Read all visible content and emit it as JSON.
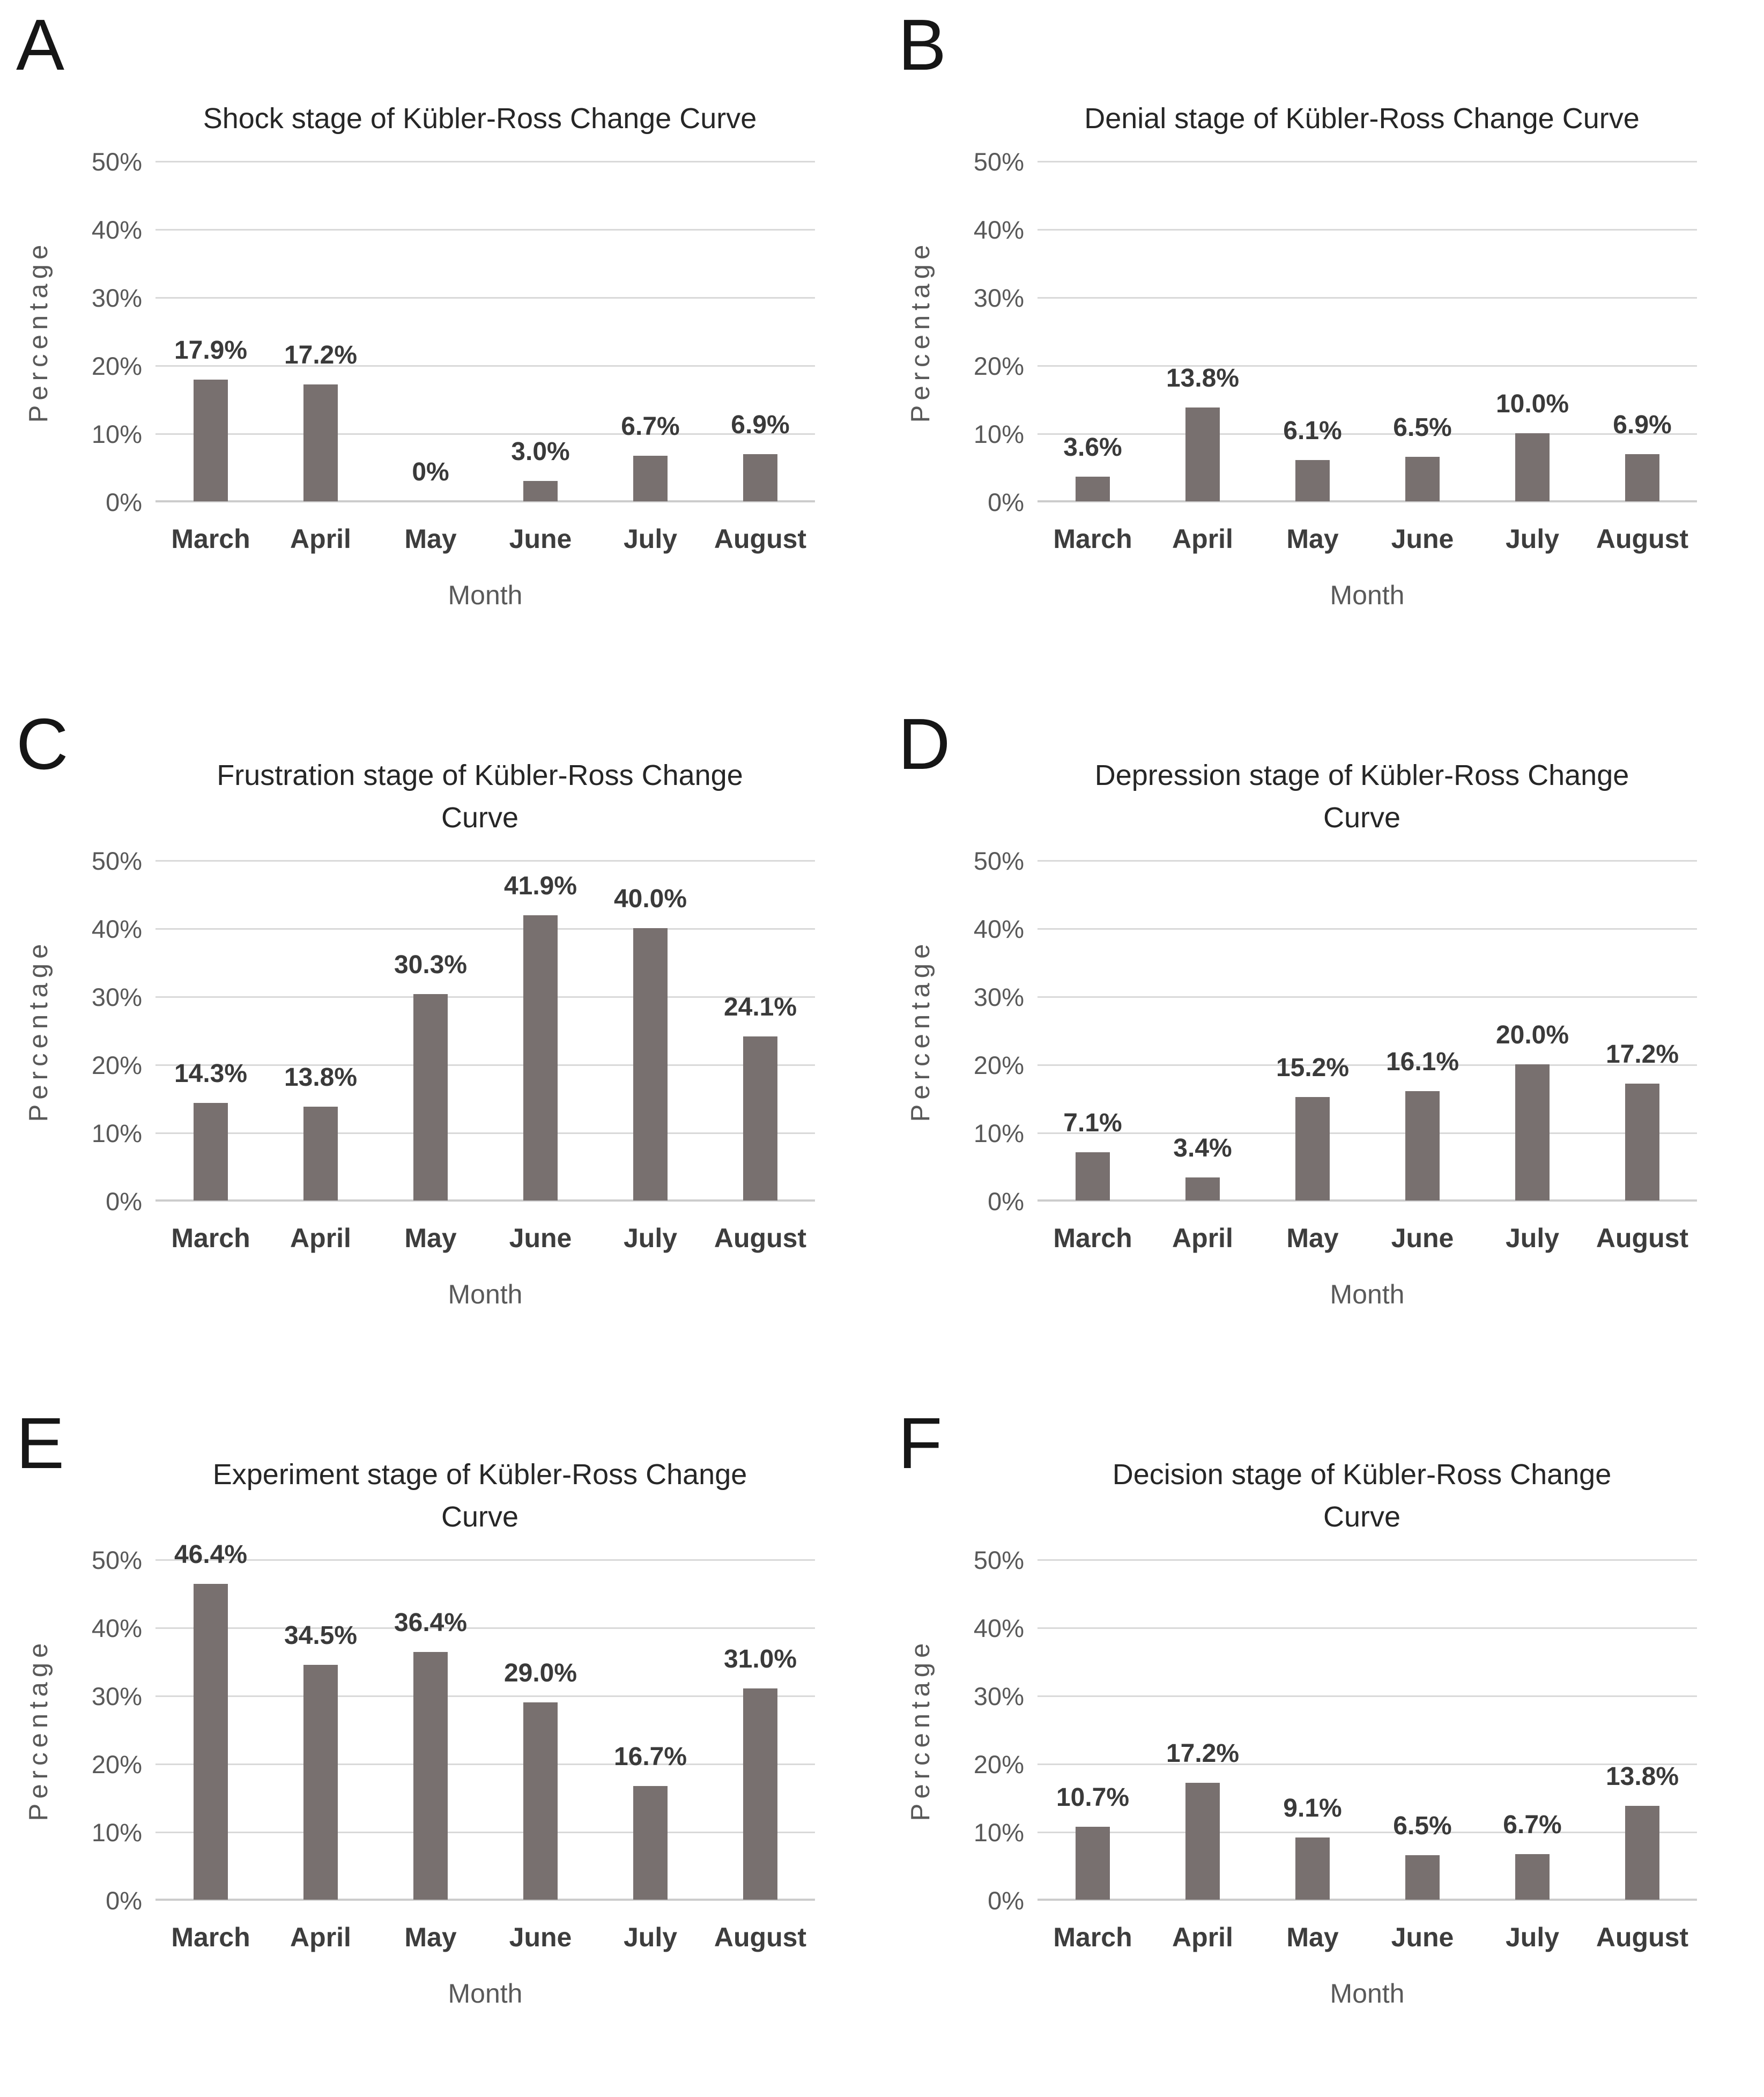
{
  "figure": {
    "y_axis_label": "Percentage",
    "x_axis_label": "Month",
    "months": [
      "March",
      "April",
      "May",
      "June",
      "July",
      "August"
    ],
    "y_ticks": [
      "50%",
      "40%",
      "30%",
      "20%",
      "10%",
      "0%"
    ],
    "colors": {
      "bar": "#78706f",
      "gridline": "#d9d9d9",
      "axis_line": "#cccccc",
      "title_text": "#262626",
      "tick_text": "#595959",
      "value_label_text": "#3a3a3a"
    }
  },
  "chart_data": [
    {
      "type": "bar",
      "panel": "A",
      "title": "Shock stage of Kübler-Ross Change Curve",
      "title_lines": [
        "Shock stage of Kübler-Ross Change Curve"
      ],
      "categories": [
        "March",
        "April",
        "May",
        "June",
        "July",
        "August"
      ],
      "values": [
        17.9,
        17.2,
        0,
        3.0,
        6.7,
        6.9
      ],
      "labels": [
        "17.9%",
        "17.2%",
        "0%",
        "3.0%",
        "6.7%",
        "6.9%"
      ],
      "xlabel": "Month",
      "ylabel": "Percentage",
      "ylim": [
        0,
        50
      ],
      "grid": true,
      "legend": "none"
    },
    {
      "type": "bar",
      "panel": "B",
      "title": "Denial stage of Kübler-Ross Change Curve",
      "title_lines": [
        "Denial stage of Kübler-Ross Change Curve"
      ],
      "categories": [
        "March",
        "April",
        "May",
        "June",
        "July",
        "August"
      ],
      "values": [
        3.6,
        13.8,
        6.1,
        6.5,
        10.0,
        6.9
      ],
      "labels": [
        "3.6%",
        "13.8%",
        "6.1%",
        "6.5%",
        "10.0%",
        "6.9%"
      ],
      "xlabel": "Month",
      "ylabel": "Percentage",
      "ylim": [
        0,
        50
      ],
      "grid": true,
      "legend": "none"
    },
    {
      "type": "bar",
      "panel": "C",
      "title": "Frustration stage of Kübler-Ross Change Curve",
      "title_lines": [
        "Frustration stage of Kübler-Ross Change",
        "Curve"
      ],
      "categories": [
        "March",
        "April",
        "May",
        "June",
        "July",
        "August"
      ],
      "values": [
        14.3,
        13.8,
        30.3,
        41.9,
        40.0,
        24.1
      ],
      "labels": [
        "14.3%",
        "13.8%",
        "30.3%",
        "41.9%",
        "40.0%",
        "24.1%"
      ],
      "xlabel": "Month",
      "ylabel": "Percentage",
      "ylim": [
        0,
        50
      ],
      "grid": true,
      "legend": "none"
    },
    {
      "type": "bar",
      "panel": "D",
      "title": "Depression stage of Kübler-Ross Change Curve",
      "title_lines": [
        "Depression stage of Kübler-Ross Change",
        "Curve"
      ],
      "categories": [
        "March",
        "April",
        "May",
        "June",
        "July",
        "August"
      ],
      "values": [
        7.1,
        3.4,
        15.2,
        16.1,
        20.0,
        17.2
      ],
      "labels": [
        "7.1%",
        "3.4%",
        "15.2%",
        "16.1%",
        "20.0%",
        "17.2%"
      ],
      "xlabel": "Month",
      "ylabel": "Percentage",
      "ylim": [
        0,
        50
      ],
      "grid": true,
      "legend": "none"
    },
    {
      "type": "bar",
      "panel": "E",
      "title": "Experiment stage of Kübler-Ross Change Curve",
      "title_lines": [
        "Experiment stage of Kübler-Ross Change",
        "Curve"
      ],
      "categories": [
        "March",
        "April",
        "May",
        "June",
        "July",
        "August"
      ],
      "values": [
        46.4,
        34.5,
        36.4,
        29.0,
        16.7,
        31.0
      ],
      "labels": [
        "46.4%",
        "34.5%",
        "36.4%",
        "29.0%",
        "16.7%",
        "31.0%"
      ],
      "xlabel": "Month",
      "ylabel": "Percentage",
      "ylim": [
        0,
        50
      ],
      "grid": true,
      "legend": "none"
    },
    {
      "type": "bar",
      "panel": "F",
      "title": "Decision stage of Kübler-Ross Change Curve",
      "title_lines": [
        "Decision stage of Kübler-Ross Change",
        "Curve"
      ],
      "categories": [
        "March",
        "April",
        "May",
        "June",
        "July",
        "August"
      ],
      "values": [
        10.7,
        17.2,
        9.1,
        6.5,
        6.7,
        13.8
      ],
      "labels": [
        "10.7%",
        "17.2%",
        "9.1%",
        "6.5%",
        "6.7%",
        "13.8%"
      ],
      "xlabel": "Month",
      "ylabel": "Percentage",
      "ylim": [
        0,
        50
      ],
      "grid": true,
      "legend": "none"
    }
  ]
}
